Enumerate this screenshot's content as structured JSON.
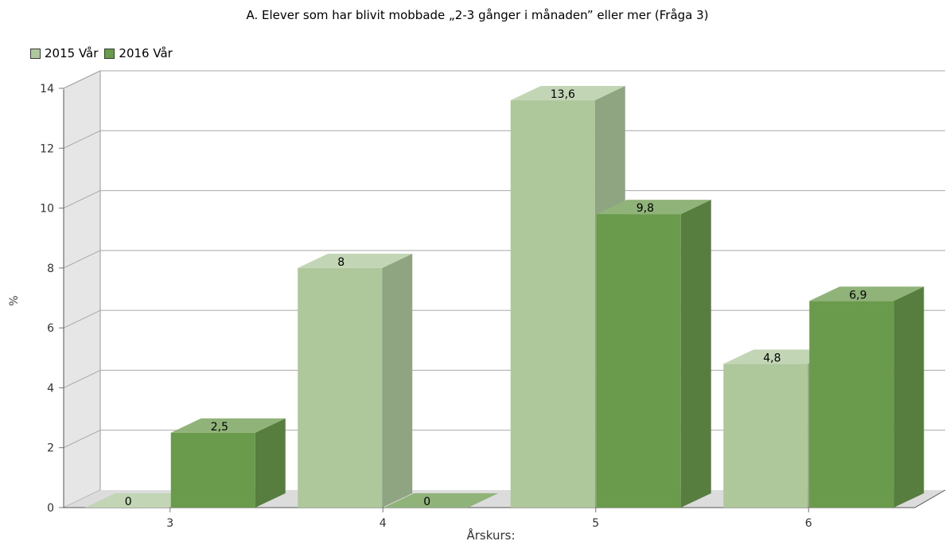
{
  "chart_data": {
    "type": "bar",
    "title": "A. Elever som har blivit mobbade „2-3 gånger i månaden” eller mer (Fråga 3)",
    "xlabel": "Årskurs:",
    "ylabel": "%",
    "categories": [
      "3",
      "4",
      "5",
      "6"
    ],
    "ylim": [
      0,
      14
    ],
    "yticks": [
      0,
      2,
      4,
      6,
      8,
      10,
      12,
      14
    ],
    "grid": true,
    "legend_position": "top-left",
    "three_d": true,
    "series": [
      {
        "name": "2015 Vår",
        "values": [
          0,
          8,
          13.6,
          4.8
        ],
        "labels": [
          "0",
          "8",
          "13,6",
          "4,8"
        ],
        "color": "#aec89c"
      },
      {
        "name": "2016 Vår",
        "values": [
          2.5,
          0,
          9.8,
          6.9
        ],
        "labels": [
          "2,5",
          "0",
          "9,8",
          "6,9"
        ],
        "color": "#6a9a4c"
      }
    ]
  }
}
